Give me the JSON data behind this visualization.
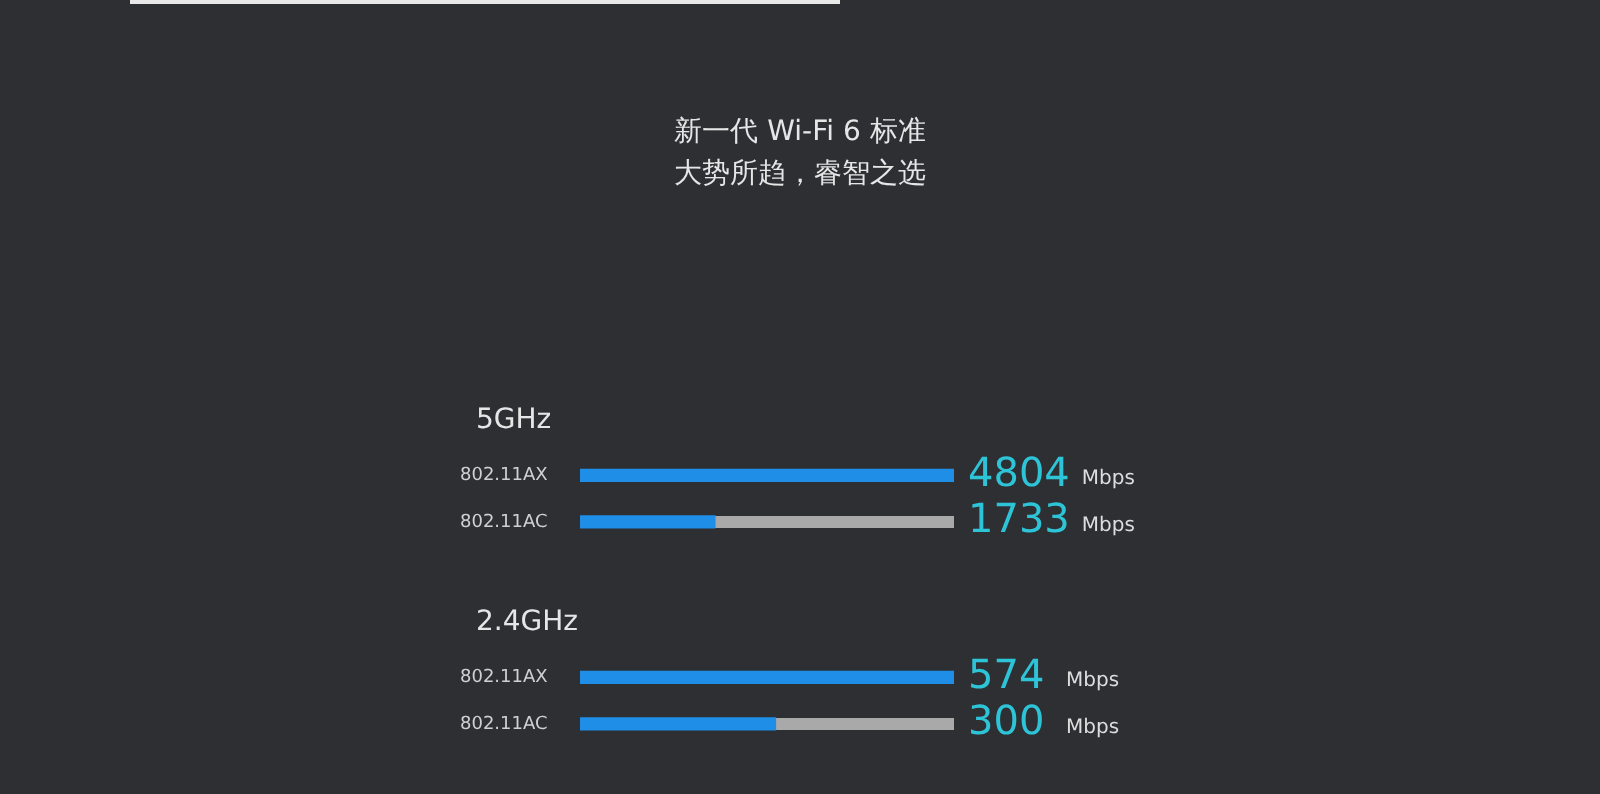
{
  "chart_data": [
    {
      "type": "bar",
      "orientation": "horizontal",
      "title": "新一代 Wi-Fi 6 标准",
      "subtitle": "大势所趋，睿智之选",
      "legend_title": "5GHz",
      "categories": [
        "802.11AX",
        "802.11AC"
      ],
      "values": [
        4804,
        1733
      ],
      "value_labels": [
        "4804 Mbps",
        "1733 Mbps"
      ],
      "color": "#1e8ee6",
      "xlim": [
        0,
        4804
      ],
      "tick_labels": "y",
      "legend": false
    },
    {
      "type": "bar",
      "orientation": "horizontal",
      "legend_title": "2.4GHz",
      "categories": [
        "802.11AX",
        "802.11AC"
      ],
      "values": [
        574,
        300
      ],
      "value_labels": [
        "574 Mbps",
        "300 Mbps"
      ],
      "color": "#1e8ee6",
      "xlim": [
        0,
        574
      ],
      "tick_labels": "y",
      "legend": false
    }
  ]
}
